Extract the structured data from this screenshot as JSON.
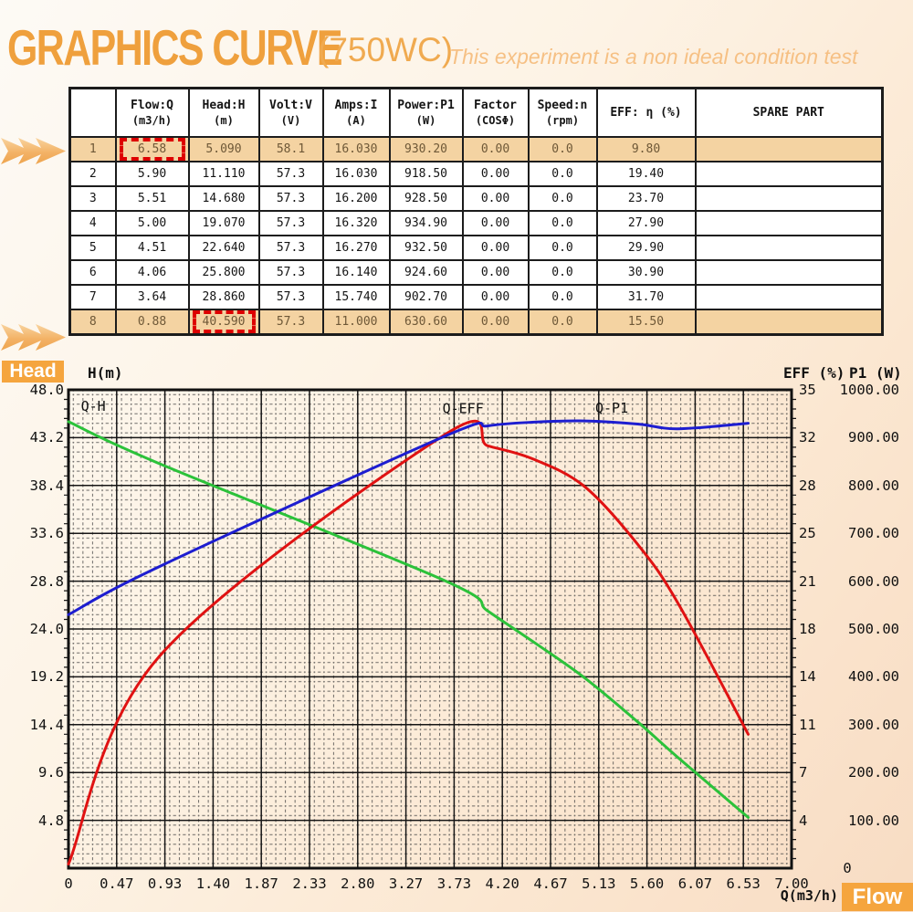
{
  "header": {
    "title": "GRAPHICS CURVE",
    "model": "(750WC)",
    "note": "This experiment is a non ideal condition test"
  },
  "badges": {
    "head": "Head",
    "flow": "Flow"
  },
  "table": {
    "columns": [
      {
        "label": "",
        "unit": ""
      },
      {
        "label": "Flow:Q",
        "unit": "(m3/h)"
      },
      {
        "label": "Head:H",
        "unit": "(m)"
      },
      {
        "label": "Volt:V",
        "unit": "(V)"
      },
      {
        "label": "Amps:I",
        "unit": "(A)"
      },
      {
        "label": "Power:P1",
        "unit": "(W)"
      },
      {
        "label": "Factor",
        "unit": "(COSΦ)"
      },
      {
        "label": "Speed:n",
        "unit": "(rpm)"
      },
      {
        "label": "EFF: η (%)",
        "unit": ""
      },
      {
        "label": "SPARE PART",
        "unit": ""
      }
    ],
    "rows": [
      [
        "1",
        "6.58",
        "5.090",
        "58.1",
        "16.030",
        "930.20",
        "0.00",
        "0.0",
        "9.80",
        ""
      ],
      [
        "2",
        "5.90",
        "11.110",
        "57.3",
        "16.030",
        "918.50",
        "0.00",
        "0.0",
        "19.40",
        ""
      ],
      [
        "3",
        "5.51",
        "14.680",
        "57.3",
        "16.200",
        "928.50",
        "0.00",
        "0.0",
        "23.70",
        ""
      ],
      [
        "4",
        "5.00",
        "19.070",
        "57.3",
        "16.320",
        "934.90",
        "0.00",
        "0.0",
        "27.90",
        ""
      ],
      [
        "5",
        "4.51",
        "22.640",
        "57.3",
        "16.270",
        "932.50",
        "0.00",
        "0.0",
        "29.90",
        ""
      ],
      [
        "6",
        "4.06",
        "25.800",
        "57.3",
        "16.140",
        "924.60",
        "0.00",
        "0.0",
        "30.90",
        ""
      ],
      [
        "7",
        "3.64",
        "28.860",
        "57.3",
        "15.740",
        "902.70",
        "0.00",
        "0.0",
        "31.70",
        ""
      ],
      [
        "8",
        "0.88",
        "40.590",
        "57.3",
        "11.000",
        "630.60",
        "0.00",
        "0.0",
        "15.50",
        ""
      ]
    ],
    "highlighted_rows": [
      0,
      7
    ],
    "dashed_cells": [
      [
        0,
        1
      ],
      [
        7,
        2
      ]
    ]
  },
  "chart_data": {
    "type": "line",
    "title": "",
    "grid": {
      "cols": 15,
      "rows": 10,
      "minor_per_major": 5,
      "style": "dotted-minor"
    },
    "x_axis": {
      "label": "Q(m3/h)",
      "min": 0,
      "max": 7,
      "ticks": [
        "0",
        "0.47",
        "0.93",
        "1.40",
        "1.87",
        "2.33",
        "2.80",
        "3.27",
        "3.73",
        "4.20",
        "4.67",
        "5.13",
        "5.60",
        "6.07",
        "6.53",
        "7.00"
      ]
    },
    "y_left": {
      "label": "H(m)",
      "min": 0,
      "max": 48,
      "ticks": [
        "48.0",
        "43.2",
        "38.4",
        "33.6",
        "28.8",
        "24.0",
        "19.2",
        "14.4",
        "9.6",
        "4.8"
      ]
    },
    "y_right_eff": {
      "label": "EFF (%)",
      "min": 0,
      "max": 35,
      "ticks": [
        "35",
        "32",
        "28",
        "25",
        "21",
        "18",
        "14",
        "11",
        "7",
        "4"
      ]
    },
    "y_right_p1": {
      "label": "P1 (W)",
      "min": 0,
      "max": 1000,
      "ticks": [
        "1000.00",
        "900.00",
        "800.00",
        "700.00",
        "600.00",
        "500.00",
        "400.00",
        "300.00",
        "200.00",
        "100.00",
        "0"
      ]
    },
    "series": [
      {
        "name": "Q-H",
        "axis": "left",
        "color": "#2bc23a",
        "x": [
          0,
          0.88,
          3.64,
          4.06,
          4.51,
          5.0,
          5.51,
          5.9,
          6.58
        ],
        "y": [
          44.8,
          40.59,
          28.86,
          25.8,
          22.64,
          19.07,
          14.68,
          11.11,
          5.09
        ],
        "label_at": {
          "x": 0.12,
          "v": 45.9
        }
      },
      {
        "name": "Q-EFF",
        "axis": "eff",
        "color": "#e01212",
        "x": [
          0,
          0.88,
          3.64,
          4.06,
          4.51,
          5.0,
          5.51,
          5.9,
          6.58
        ],
        "y": [
          0.3,
          15.5,
          31.7,
          30.9,
          29.9,
          27.9,
          23.7,
          19.4,
          9.8
        ],
        "label_at": {
          "x": 3.62,
          "v": 33.3
        }
      },
      {
        "name": "Q-P1",
        "axis": "p1",
        "color": "#1d1dd0",
        "x": [
          0,
          0.88,
          3.64,
          4.06,
          4.51,
          5.0,
          5.51,
          5.9,
          6.58
        ],
        "y": [
          530,
          630.6,
          902.7,
          924.6,
          932.5,
          934.9,
          928.5,
          918.5,
          930.2
        ],
        "label_at": {
          "x": 5.1,
          "v": 952
        }
      }
    ]
  }
}
